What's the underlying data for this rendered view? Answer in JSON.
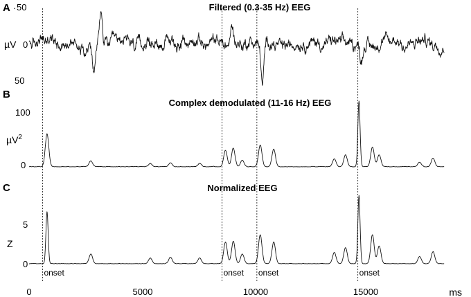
{
  "panels": {
    "a": {
      "letter": "A",
      "title": "Filtered (0.3-35 Hz) EEG",
      "unit": "µV",
      "ticks": [
        "50",
        "0",
        "50"
      ]
    },
    "b": {
      "letter": "B",
      "title": "Complex demodulated (11-16 Hz) EEG",
      "unit": "µV",
      "unit_sup": "2",
      "ticks": [
        "100",
        "0"
      ]
    },
    "c": {
      "letter": "C",
      "title": "Normalized EEG",
      "unit": "Z",
      "ticks": [
        "5",
        "0"
      ]
    }
  },
  "x_axis": {
    "unit": "ms",
    "ticks": [
      "0",
      "5000",
      "10000",
      "15000"
    ]
  },
  "onset_label": "onset",
  "chart_data": {
    "type": "line",
    "x_unit": "ms",
    "xlim": [
      0,
      18500
    ],
    "onsets_ms": [
      600,
      8600,
      10150,
      14650
    ],
    "panel_a": {
      "ylim": [
        -60,
        60
      ],
      "ticks": [
        50,
        0,
        -50
      ],
      "notable_deflections": [
        {
          "x": 2900,
          "y": -45
        },
        {
          "x": 3200,
          "y": 50
        },
        {
          "x": 9050,
          "y": 30
        },
        {
          "x": 10400,
          "y": -65
        },
        {
          "x": 14800,
          "y": -25
        }
      ]
    },
    "panel_b": {
      "ylim": [
        0,
        120
      ],
      "ticks": [
        0,
        100
      ],
      "peaks": [
        {
          "x": 800,
          "y": 50
        },
        {
          "x": 2750,
          "y": 9
        },
        {
          "x": 5400,
          "y": 5
        },
        {
          "x": 6300,
          "y": 6
        },
        {
          "x": 7600,
          "y": 5
        },
        {
          "x": 8750,
          "y": 25
        },
        {
          "x": 9100,
          "y": 28
        },
        {
          "x": 9500,
          "y": 10
        },
        {
          "x": 10300,
          "y": 33
        },
        {
          "x": 10900,
          "y": 27
        },
        {
          "x": 13600,
          "y": 12
        },
        {
          "x": 14100,
          "y": 18
        },
        {
          "x": 14700,
          "y": 100
        },
        {
          "x": 15300,
          "y": 30
        },
        {
          "x": 15600,
          "y": 18
        },
        {
          "x": 17400,
          "y": 7
        },
        {
          "x": 18000,
          "y": 13
        }
      ]
    },
    "panel_c": {
      "ylim": [
        -0.5,
        8.5
      ],
      "ticks": [
        0,
        5
      ],
      "peaks": [
        {
          "x": 800,
          "y": 6.5
        },
        {
          "x": 2750,
          "y": 1.2
        },
        {
          "x": 5400,
          "y": 0.7
        },
        {
          "x": 6300,
          "y": 0.8
        },
        {
          "x": 7600,
          "y": 0.7
        },
        {
          "x": 8750,
          "y": 2.7
        },
        {
          "x": 9100,
          "y": 2.8
        },
        {
          "x": 9500,
          "y": 1.2
        },
        {
          "x": 10300,
          "y": 3.6
        },
        {
          "x": 10900,
          "y": 2.7
        },
        {
          "x": 13600,
          "y": 1.4
        },
        {
          "x": 14100,
          "y": 2.0
        },
        {
          "x": 14700,
          "y": 8.5
        },
        {
          "x": 15300,
          "y": 3.6
        },
        {
          "x": 15600,
          "y": 2.2
        },
        {
          "x": 17400,
          "y": 0.9
        },
        {
          "x": 18000,
          "y": 1.5
        }
      ]
    }
  }
}
